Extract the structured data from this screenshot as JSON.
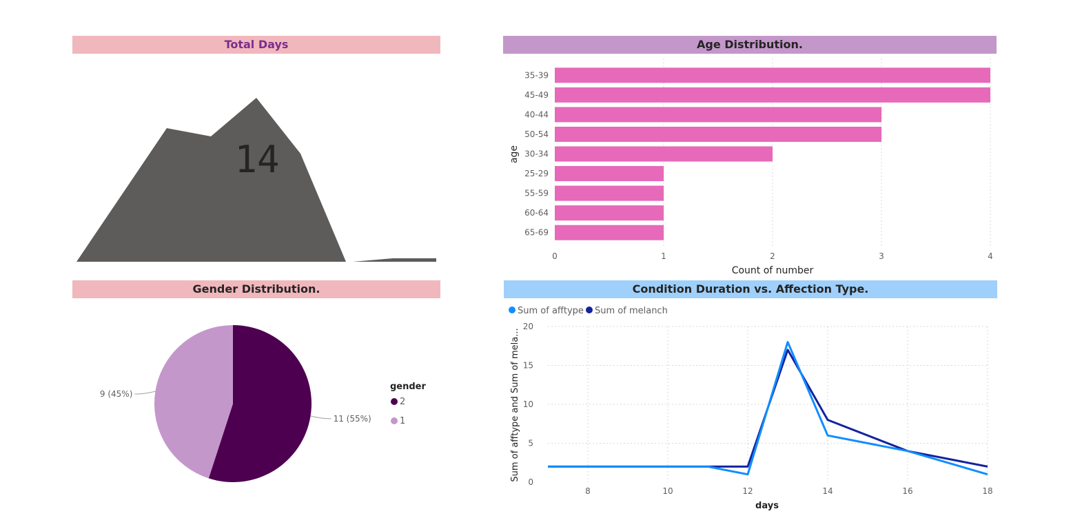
{
  "colors": {
    "pink_band": "#f0b8bc",
    "purple_band": "#c497cb",
    "blue_band": "#9fd0fb",
    "total_days_title": "#7b2d8e",
    "area_fill": "#5d5c5a",
    "bar_fill": "#e669ba",
    "pie_dark": "#4e0050",
    "pie_light": "#c497cb",
    "line_afftype": "#118dff",
    "line_melanch": "#12239e",
    "grid": "#d9d9d9"
  },
  "total_days": {
    "title": "Total Days",
    "value": "14"
  },
  "chart_data": [
    {
      "type": "area",
      "title": "Total Days",
      "series": [
        {
          "values": [
            0,
            194,
            182,
            238,
            157,
            0
          ]
        },
        {
          "values": [
            0,
            5,
            5
          ]
        }
      ]
    },
    {
      "type": "bar",
      "title": "Age Distribution.",
      "ylabel": "age",
      "xlabel": "Count of number",
      "categories": [
        "35-39",
        "45-49",
        "40-44",
        "50-54",
        "30-34",
        "25-29",
        "55-59",
        "60-64",
        "65-69"
      ],
      "values": [
        4,
        4,
        3,
        3,
        2,
        1,
        1,
        1,
        1
      ],
      "xlim": [
        0,
        4
      ],
      "xticks": [
        "0",
        "1",
        "2",
        "3",
        "4"
      ],
      "grid": true
    },
    {
      "type": "pie",
      "title": "Gender Distribution.",
      "legend_title": "gender",
      "legend_position": "right",
      "slices": [
        {
          "name": "2",
          "value": 11,
          "label": "11 (55%)"
        },
        {
          "name": "1",
          "value": 9,
          "label": "9 (45%)"
        }
      ]
    },
    {
      "type": "line",
      "title": "Condition Duration vs. Affection Type.",
      "xlabel": "days",
      "ylabel": "Sum of afftype and Sum of mela...",
      "xlim": [
        7,
        18
      ],
      "ylim": [
        0,
        20
      ],
      "xticks": [
        "8",
        "10",
        "12",
        "14",
        "16",
        "18"
      ],
      "yticks": [
        "0",
        "5",
        "10",
        "15",
        "20"
      ],
      "legend_position": "top-left",
      "grid": true,
      "series": [
        {
          "name": "Sum of afftype",
          "x": [
            7,
            11,
            12,
            13,
            14,
            16,
            18
          ],
          "values": [
            2,
            2,
            1,
            18,
            6,
            4,
            1
          ]
        },
        {
          "name": "Sum of melanch",
          "x": [
            7,
            11,
            12,
            13,
            14,
            16,
            18
          ],
          "values": [
            2,
            2,
            2,
            17,
            8,
            4,
            2
          ]
        }
      ]
    }
  ]
}
